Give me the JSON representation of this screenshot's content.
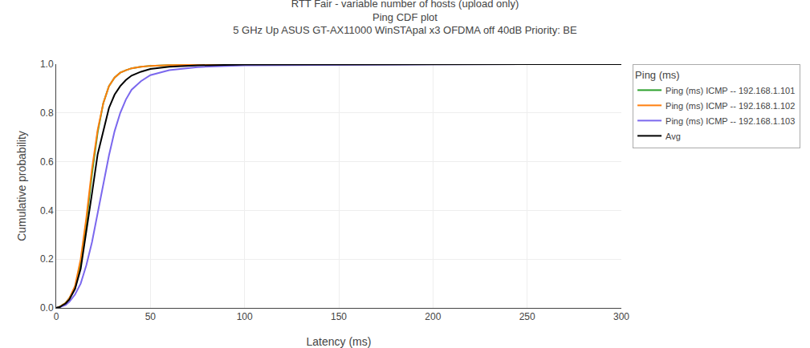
{
  "chart_data": {
    "type": "line",
    "title": "RTT Fair - variable number of hosts (upload only)\nPing CDF plot\n5 GHz Up ASUS GT-AX11000 WinSTApal x3 OFDMA off 40dB Priority: BE",
    "xlabel": "Latency (ms)",
    "ylabel": "Cumulative probability",
    "legend_title": "Ping (ms)",
    "legend": "upper right",
    "grid": true,
    "xlim": [
      0,
      300
    ],
    "ylim": [
      0.0,
      1.0
    ],
    "xticks": [
      0,
      50,
      100,
      150,
      200,
      250,
      300
    ],
    "yticks": [
      {
        "value": 0.0,
        "label": "0.0"
      },
      0.2,
      0.4,
      0.6,
      0.8,
      {
        "value": 1.0,
        "label": "1.0"
      }
    ],
    "x": [
      0,
      1,
      2,
      3,
      5,
      7,
      10,
      13,
      16,
      19,
      22,
      25,
      28,
      31,
      34,
      37,
      40,
      45,
      50,
      60,
      75,
      100,
      150,
      200,
      250,
      300
    ],
    "series": [
      {
        "name": "Ping (ms) ICMP -- 192.168.1.101",
        "color": "#2ca02c",
        "values": [
          0.0,
          0.002,
          0.005,
          0.01,
          0.02,
          0.04,
          0.08,
          0.18,
          0.35,
          0.55,
          0.72,
          0.84,
          0.91,
          0.945,
          0.965,
          0.975,
          0.983,
          0.989,
          0.993,
          0.996,
          0.998,
          0.999,
          0.9995,
          1.0,
          1.0,
          1.0
        ]
      },
      {
        "name": "Ping (ms) ICMP -- 192.168.1.102",
        "color": "#ff7f0e",
        "values": [
          0.0,
          0.002,
          0.005,
          0.01,
          0.02,
          0.04,
          0.09,
          0.2,
          0.37,
          0.57,
          0.73,
          0.84,
          0.91,
          0.945,
          0.965,
          0.975,
          0.983,
          0.989,
          0.993,
          0.996,
          0.998,
          0.999,
          0.9995,
          1.0,
          1.0,
          1.0
        ]
      },
      {
        "name": "Ping (ms) ICMP -- 192.168.1.103",
        "color": "#7b68ee",
        "values": [
          0.0,
          0.001,
          0.003,
          0.006,
          0.012,
          0.025,
          0.055,
          0.1,
          0.175,
          0.27,
          0.385,
          0.51,
          0.625,
          0.725,
          0.8,
          0.855,
          0.895,
          0.93,
          0.955,
          0.975,
          0.988,
          0.995,
          0.998,
          0.999,
          1.0,
          1.0
        ]
      },
      {
        "name": "Avg",
        "color": "#000000",
        "values": [
          0.0,
          0.002,
          0.004,
          0.009,
          0.018,
          0.035,
          0.078,
          0.16,
          0.31,
          0.47,
          0.63,
          0.73,
          0.82,
          0.875,
          0.91,
          0.935,
          0.953,
          0.969,
          0.98,
          0.989,
          0.995,
          0.998,
          0.9993,
          1.0,
          1.0,
          1.0
        ]
      }
    ]
  }
}
